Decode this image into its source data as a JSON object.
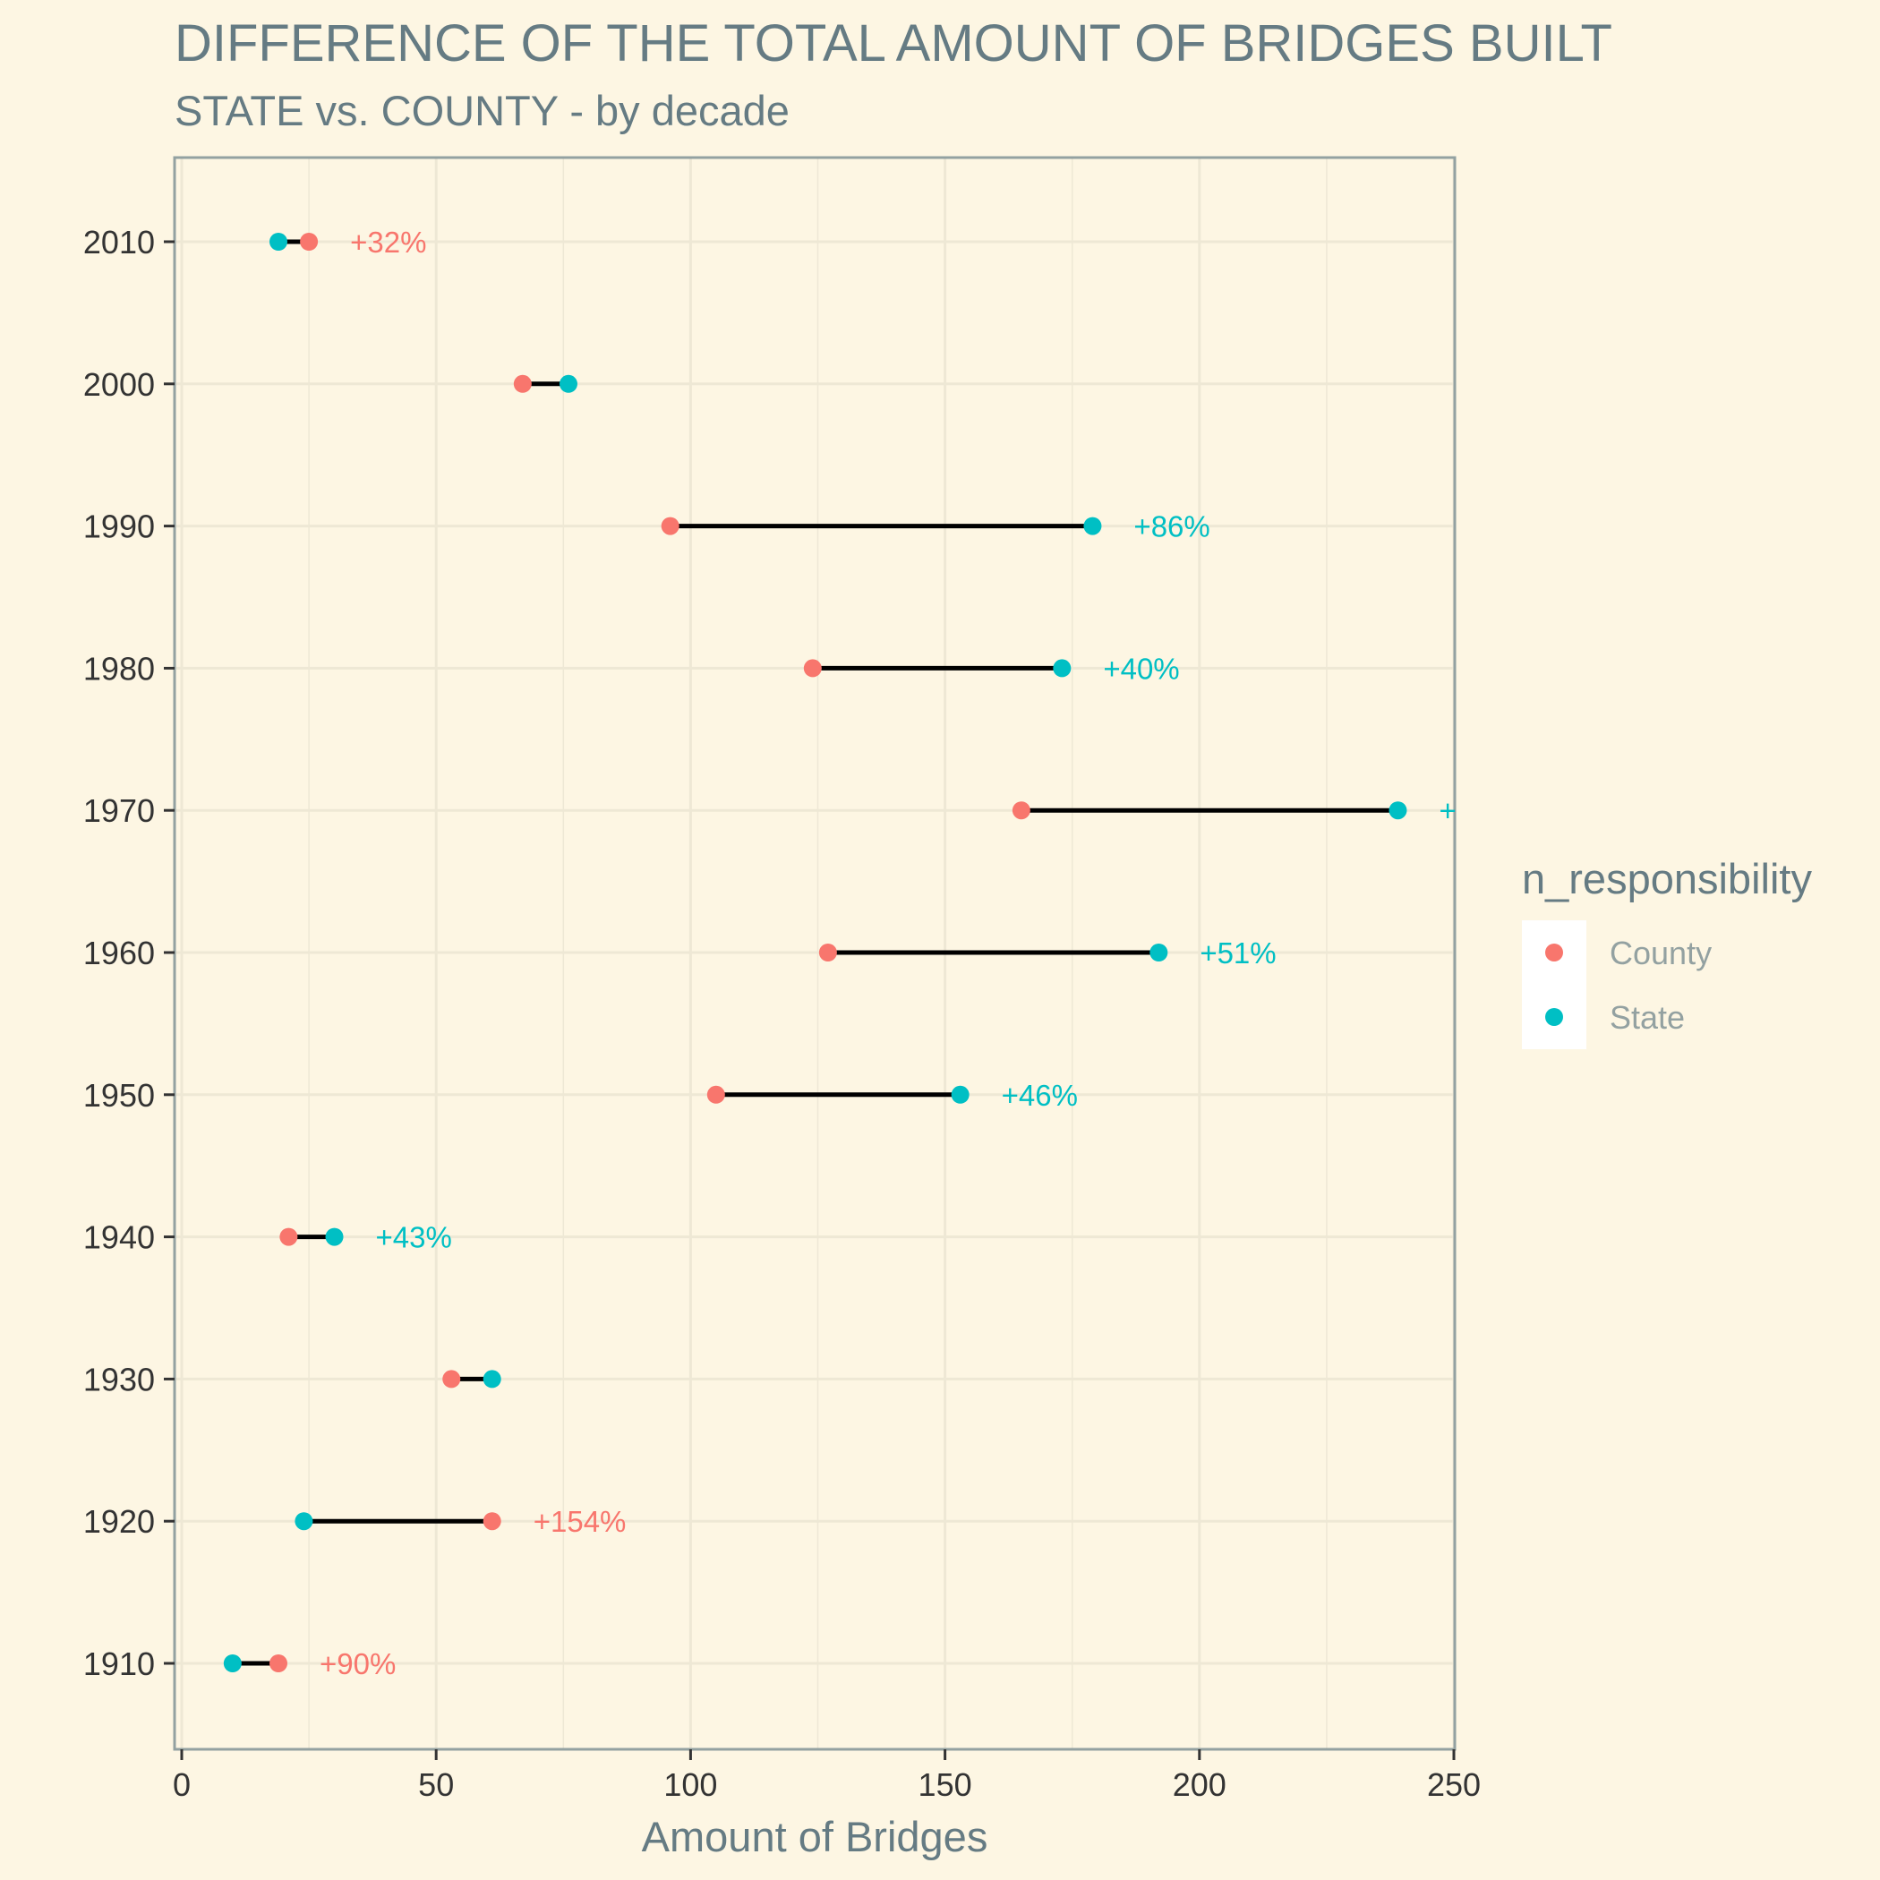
{
  "chart_data": {
    "type": "dumbbell",
    "title": "DIFFERENCE OF THE TOTAL AMOUNT OF BRIDGES BUILT",
    "subtitle": "STATE vs. COUNTY - by decade",
    "xlabel": "Amount of Bridges",
    "ylabel": "",
    "xlim": [
      0,
      250
    ],
    "x_ticks": [
      "0",
      "50",
      "100",
      "150",
      "200",
      "250"
    ],
    "categories": [
      "1910",
      "1920",
      "1930",
      "1940",
      "1950",
      "1960",
      "1970",
      "1980",
      "1990",
      "2000",
      "2010"
    ],
    "series": [
      {
        "name": "County",
        "color": "#f8766d",
        "values": [
          19,
          61,
          53,
          21,
          105,
          127,
          165,
          124,
          96,
          67,
          25
        ]
      },
      {
        "name": "State",
        "color": "#00bfc4",
        "values": [
          10,
          24,
          61,
          30,
          153,
          192,
          239,
          173,
          179,
          76,
          19
        ]
      }
    ],
    "annotations": [
      {
        "category": "1910",
        "text": "+90%",
        "series": "County"
      },
      {
        "category": "1920",
        "text": "+154%",
        "series": "County"
      },
      {
        "category": "1940",
        "text": "+43%",
        "series": "State"
      },
      {
        "category": "1950",
        "text": "+46%",
        "series": "State"
      },
      {
        "category": "1960",
        "text": "+51%",
        "series": "State"
      },
      {
        "category": "1970",
        "text": "+",
        "series": "State"
      },
      {
        "category": "1980",
        "text": "+40%",
        "series": "State"
      },
      {
        "category": "1990",
        "text": "+86%",
        "series": "State"
      },
      {
        "category": "2010",
        "text": "+32%",
        "series": "County"
      }
    ],
    "grid": true,
    "background_color": "#fdf6e3",
    "grid_color": "#eee8d5",
    "connector_color": "#000000",
    "legend": {
      "title": "n_responsibility",
      "position": "right",
      "entries": [
        "County",
        "State"
      ]
    }
  }
}
